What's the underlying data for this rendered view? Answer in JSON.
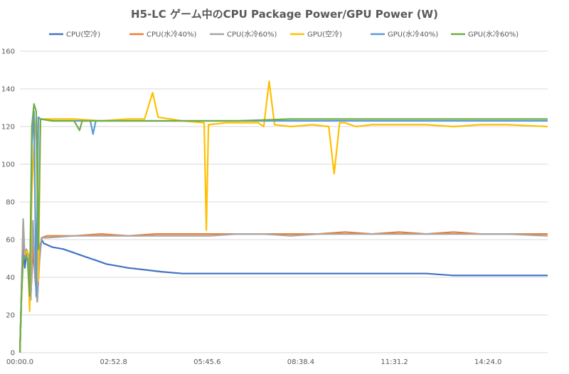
{
  "chart_data": {
    "type": "line",
    "title": "H5-LC ゲーム中のCPU Package Power/GPU Power (W)",
    "xlabel": "",
    "ylabel": "",
    "ylim": [
      0,
      160
    ],
    "yticks": [
      "0",
      "20",
      "40",
      "60",
      "80",
      "100",
      "120",
      "140",
      "160"
    ],
    "x_unit": "seconds",
    "xlim_seconds": [
      0,
      974
    ],
    "xticks": [
      {
        "label": "00:00.0",
        "seconds": 0
      },
      {
        "label": "02:52.8",
        "seconds": 172.8
      },
      {
        "label": "05:45.6",
        "seconds": 345.6
      },
      {
        "label": "08:38.4",
        "seconds": 518.4
      },
      {
        "label": "11:31.2",
        "seconds": 691.2
      },
      {
        "label": "14:24.0",
        "seconds": 864.0
      }
    ],
    "grid": "horizontal",
    "legend_position": "top",
    "series": [
      {
        "name": "CPU(空冷)",
        "color": "#4472C4",
        "points": [
          [
            0,
            0
          ],
          [
            3,
            33
          ],
          [
            6,
            62
          ],
          [
            9,
            45
          ],
          [
            12,
            52
          ],
          [
            16,
            52
          ],
          [
            20,
            30
          ],
          [
            24,
            55
          ],
          [
            28,
            40
          ],
          [
            32,
            28
          ],
          [
            36,
            55
          ],
          [
            40,
            60
          ],
          [
            44,
            58
          ],
          [
            60,
            56
          ],
          [
            80,
            55
          ],
          [
            100,
            53
          ],
          [
            120,
            51
          ],
          [
            140,
            49
          ],
          [
            160,
            47
          ],
          [
            180,
            46
          ],
          [
            200,
            45
          ],
          [
            230,
            44
          ],
          [
            260,
            43
          ],
          [
            300,
            42
          ],
          [
            340,
            42
          ],
          [
            400,
            42
          ],
          [
            450,
            42
          ],
          [
            500,
            42
          ],
          [
            550,
            42
          ],
          [
            600,
            42
          ],
          [
            650,
            42
          ],
          [
            700,
            42
          ],
          [
            750,
            42
          ],
          [
            800,
            41
          ],
          [
            850,
            41
          ],
          [
            900,
            41
          ],
          [
            974,
            41
          ]
        ]
      },
      {
        "name": "CPU(水冷40%)",
        "color": "#ED7D31",
        "points": [
          [
            0,
            0
          ],
          [
            3,
            34
          ],
          [
            6,
            68
          ],
          [
            9,
            50
          ],
          [
            12,
            53
          ],
          [
            16,
            52
          ],
          [
            20,
            28
          ],
          [
            24,
            60
          ],
          [
            28,
            40
          ],
          [
            32,
            27
          ],
          [
            36,
            50
          ],
          [
            40,
            61
          ],
          [
            50,
            62
          ],
          [
            100,
            62
          ],
          [
            150,
            63
          ],
          [
            200,
            62
          ],
          [
            250,
            63
          ],
          [
            300,
            63
          ],
          [
            350,
            63
          ],
          [
            400,
            63
          ],
          [
            450,
            63
          ],
          [
            500,
            63
          ],
          [
            550,
            63
          ],
          [
            600,
            64
          ],
          [
            650,
            63
          ],
          [
            700,
            64
          ],
          [
            750,
            63
          ],
          [
            800,
            64
          ],
          [
            850,
            63
          ],
          [
            900,
            63
          ],
          [
            974,
            63
          ]
        ]
      },
      {
        "name": "CPU(水冷60%)",
        "color": "#A5A5A5",
        "points": [
          [
            0,
            0
          ],
          [
            3,
            35
          ],
          [
            6,
            71
          ],
          [
            9,
            50
          ],
          [
            12,
            55
          ],
          [
            16,
            52
          ],
          [
            20,
            28
          ],
          [
            24,
            70
          ],
          [
            28,
            42
          ],
          [
            32,
            27
          ],
          [
            36,
            48
          ],
          [
            40,
            61
          ],
          [
            50,
            61
          ],
          [
            100,
            62
          ],
          [
            150,
            62
          ],
          [
            200,
            62
          ],
          [
            250,
            62
          ],
          [
            300,
            62
          ],
          [
            350,
            62
          ],
          [
            400,
            63
          ],
          [
            450,
            63
          ],
          [
            500,
            62
          ],
          [
            550,
            63
          ],
          [
            600,
            63
          ],
          [
            650,
            63
          ],
          [
            700,
            63
          ],
          [
            750,
            63
          ],
          [
            800,
            63
          ],
          [
            850,
            63
          ],
          [
            900,
            63
          ],
          [
            974,
            62
          ]
        ]
      },
      {
        "name": "GPU(空冷)",
        "color": "#FFC000",
        "points": [
          [
            0,
            0
          ],
          [
            3,
            30
          ],
          [
            6,
            50
          ],
          [
            9,
            53
          ],
          [
            14,
            54
          ],
          [
            18,
            22
          ],
          [
            22,
            85
          ],
          [
            26,
            110
          ],
          [
            30,
            125
          ],
          [
            34,
            38
          ],
          [
            38,
            124
          ],
          [
            50,
            124
          ],
          [
            100,
            124
          ],
          [
            150,
            123
          ],
          [
            200,
            124
          ],
          [
            230,
            124
          ],
          [
            245,
            138
          ],
          [
            255,
            125
          ],
          [
            300,
            123
          ],
          [
            340,
            122
          ],
          [
            344,
            65
          ],
          [
            348,
            121
          ],
          [
            380,
            122
          ],
          [
            440,
            122
          ],
          [
            450,
            120
          ],
          [
            460,
            144
          ],
          [
            470,
            121
          ],
          [
            500,
            120
          ],
          [
            540,
            121
          ],
          [
            570,
            120
          ],
          [
            580,
            95
          ],
          [
            590,
            122
          ],
          [
            600,
            122
          ],
          [
            620,
            120
          ],
          [
            650,
            121
          ],
          [
            700,
            121
          ],
          [
            750,
            121
          ],
          [
            800,
            120
          ],
          [
            850,
            121
          ],
          [
            900,
            121
          ],
          [
            974,
            120
          ]
        ]
      },
      {
        "name": "GPU(水冷40%)",
        "color": "#5B9BD5",
        "points": [
          [
            0,
            0
          ],
          [
            3,
            32
          ],
          [
            6,
            52
          ],
          [
            9,
            51
          ],
          [
            14,
            50
          ],
          [
            18,
            30
          ],
          [
            22,
            110
          ],
          [
            26,
            128
          ],
          [
            30,
            30
          ],
          [
            34,
            125
          ],
          [
            38,
            124
          ],
          [
            60,
            123
          ],
          [
            100,
            123
          ],
          [
            130,
            123
          ],
          [
            135,
            116
          ],
          [
            140,
            123
          ],
          [
            200,
            123
          ],
          [
            300,
            123
          ],
          [
            400,
            123
          ],
          [
            500,
            123
          ],
          [
            600,
            123
          ],
          [
            700,
            123
          ],
          [
            800,
            123
          ],
          [
            900,
            123
          ],
          [
            974,
            123
          ]
        ]
      },
      {
        "name": "GPU(水冷60%)",
        "color": "#70AD47",
        "points": [
          [
            0,
            0
          ],
          [
            3,
            32
          ],
          [
            6,
            50
          ],
          [
            9,
            50
          ],
          [
            14,
            50
          ],
          [
            18,
            30
          ],
          [
            22,
            120
          ],
          [
            26,
            132
          ],
          [
            30,
            128
          ],
          [
            34,
            55
          ],
          [
            38,
            124
          ],
          [
            60,
            123
          ],
          [
            100,
            123
          ],
          [
            110,
            118
          ],
          [
            115,
            123
          ],
          [
            200,
            123
          ],
          [
            300,
            123
          ],
          [
            400,
            123
          ],
          [
            500,
            124
          ],
          [
            600,
            124
          ],
          [
            700,
            124
          ],
          [
            800,
            124
          ],
          [
            900,
            124
          ],
          [
            974,
            124
          ]
        ]
      }
    ]
  }
}
